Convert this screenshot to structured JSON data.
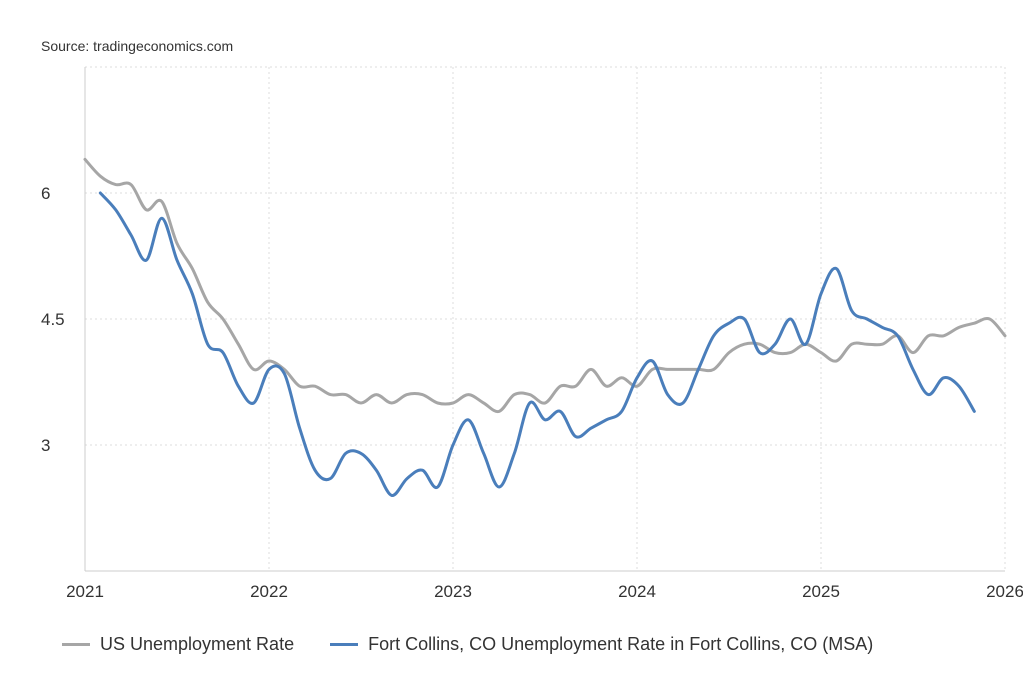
{
  "source": "Source: tradingeconomics.com",
  "chart_data": {
    "type": "line",
    "title": "",
    "xlabel": "",
    "ylabel": "",
    "xlim": [
      2021,
      2026
    ],
    "ylim": [
      1.5,
      7.5
    ],
    "x_ticks": [
      "2021",
      "2022",
      "2023",
      "2024",
      "2025",
      "2026"
    ],
    "y_ticks": [
      "3",
      "4.5",
      "6"
    ],
    "grid": true,
    "legend_position": "bottom-left",
    "series": [
      {
        "name": "US Unemployment Rate",
        "color": "#a6a6a6",
        "start": "2021-01",
        "values": [
          6.4,
          6.2,
          6.1,
          6.1,
          5.8,
          5.9,
          5.4,
          5.1,
          4.7,
          4.5,
          4.2,
          3.9,
          4.0,
          3.9,
          3.7,
          3.7,
          3.6,
          3.6,
          3.5,
          3.6,
          3.5,
          3.6,
          3.6,
          3.5,
          3.5,
          3.6,
          3.5,
          3.4,
          3.6,
          3.6,
          3.5,
          3.7,
          3.7,
          3.9,
          3.7,
          3.8,
          3.7,
          3.9,
          3.9,
          3.9,
          3.9,
          3.9,
          4.1,
          4.2,
          4.2,
          4.1,
          4.1,
          4.2,
          4.1,
          4.0,
          4.2,
          4.2,
          4.2,
          4.3,
          4.1,
          4.3,
          4.3,
          4.4,
          4.45,
          4.5,
          4.3
        ]
      },
      {
        "name": "Fort Collins, CO Unemployment Rate in Fort Collins, CO (MSA)",
        "color": "#4a7ebb",
        "start": "2021-02",
        "values": [
          6.0,
          5.8,
          5.5,
          5.2,
          5.7,
          5.2,
          4.8,
          4.2,
          4.1,
          3.7,
          3.5,
          3.9,
          3.85,
          3.2,
          2.7,
          2.6,
          2.9,
          2.9,
          2.7,
          2.4,
          2.6,
          2.7,
          2.5,
          3.0,
          3.3,
          2.9,
          2.5,
          2.9,
          3.5,
          3.3,
          3.4,
          3.1,
          3.2,
          3.3,
          3.4,
          3.8,
          4.0,
          3.6,
          3.5,
          3.9,
          4.3,
          4.45,
          4.5,
          4.1,
          4.2,
          4.5,
          4.2,
          4.8,
          5.1,
          4.6,
          4.5,
          4.4,
          4.3,
          3.9,
          3.6,
          3.8,
          3.7,
          3.4
        ]
      }
    ]
  }
}
